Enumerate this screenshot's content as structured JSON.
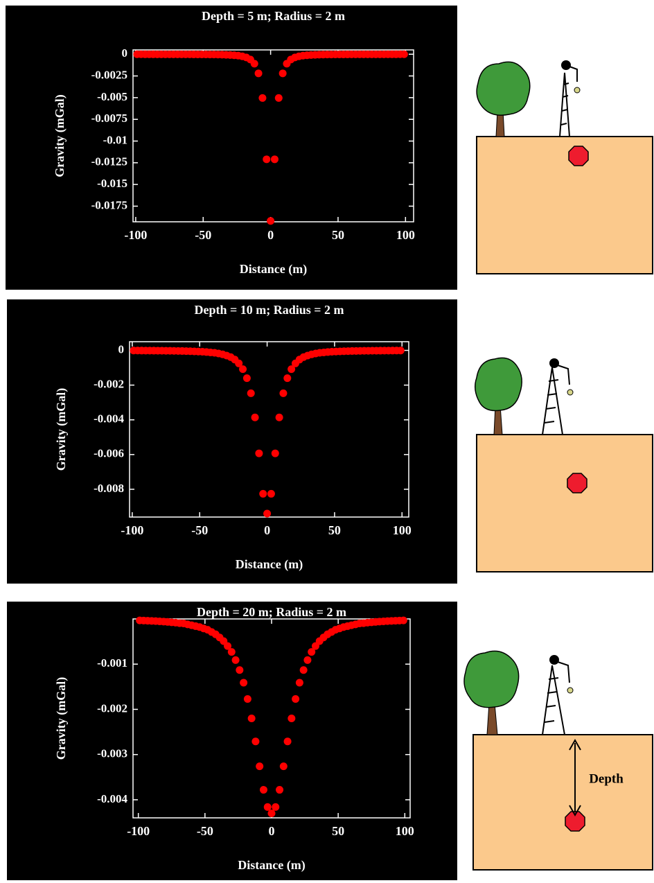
{
  "chart_data": [
    {
      "type": "scatter",
      "title": "Depth = 5 m; Radius = 2 m",
      "xlabel": "Distance (m)",
      "ylabel": "Gravity (mGal)",
      "x": [
        -99,
        -96,
        -93,
        -90,
        -87,
        -84,
        -81,
        -78,
        -75,
        -72,
        -69,
        -66,
        -63,
        -60,
        -57,
        -54,
        -51,
        -48,
        -45,
        -42,
        -39,
        -36,
        -33,
        -30,
        -27,
        -24,
        -21,
        -18,
        -15,
        -12,
        -9,
        -6,
        -3,
        0,
        3,
        6,
        9,
        12,
        15,
        18,
        21,
        24,
        27,
        30,
        33,
        36,
        39,
        42,
        45,
        48,
        51,
        54,
        57,
        60,
        63,
        66,
        69,
        72,
        75,
        78,
        81,
        84,
        87,
        90,
        93,
        96,
        99
      ],
      "series": [
        {
          "color": "#ff0000",
          "values": [
            -2.5e-06,
            -2.7e-06,
            -3e-06,
            -3.3e-06,
            -3.6e-06,
            -4e-06,
            -4.5e-06,
            -5e-06,
            -5.7e-06,
            -6.4e-06,
            -7.2e-06,
            -8.3e-06,
            -9.5e-06,
            -1.1e-05,
            -1.3e-05,
            -1.5e-05,
            -1.8e-05,
            -2.1e-05,
            -2.6e-05,
            -3.2e-05,
            -4e-05,
            -5e-05,
            -6.5e-05,
            -8.5e-05,
            -0.00012,
            -0.00016,
            -0.00024,
            -0.00037,
            -0.00061,
            -0.00109,
            -0.0022,
            -0.00504,
            -0.0121,
            -0.0192,
            -0.0121,
            -0.00504,
            -0.0022,
            -0.00109,
            -0.00061,
            -0.00037,
            -0.00024,
            -0.00016,
            -0.00012,
            -8.5e-05,
            -6.5e-05,
            -5e-05,
            -4e-05,
            -3.2e-05,
            -2.6e-05,
            -2.1e-05,
            -1.8e-05,
            -1.5e-05,
            -1.3e-05,
            -1.1e-05,
            -9.5e-06,
            -8.3e-06,
            -7.2e-06,
            -6.4e-06,
            -5.7e-06,
            -5e-06,
            -4.5e-06,
            -4e-06,
            -3.6e-06,
            -3.3e-06,
            -3e-06,
            -2.7e-06,
            -2.5e-06
          ]
        }
      ],
      "xlim": [
        -102,
        106
      ],
      "ylim": [
        -0.0193,
        0.0005
      ],
      "xticks": [
        -100,
        -50,
        0,
        50,
        100
      ],
      "yticks": [
        0,
        -0.0025,
        -0.005,
        -0.0075,
        -0.01,
        -0.0125,
        -0.015,
        -0.0175
      ]
    },
    {
      "type": "scatter",
      "title": "Depth = 10 m; Radius = 2 m",
      "xlabel": "Distance (m)",
      "ylabel": "Gravity (mGal)",
      "x": [
        -99,
        -96,
        -93,
        -90,
        -87,
        -84,
        -81,
        -78,
        -75,
        -72,
        -69,
        -66,
        -63,
        -60,
        -57,
        -54,
        -51,
        -48,
        -45,
        -42,
        -39,
        -36,
        -33,
        -30,
        -27,
        -24,
        -21,
        -18,
        -15,
        -12,
        -9,
        -6,
        -3,
        0,
        3,
        6,
        9,
        12,
        15,
        18,
        21,
        24,
        27,
        30,
        33,
        36,
        39,
        42,
        45,
        48,
        51,
        54,
        57,
        60,
        63,
        66,
        69,
        72,
        75,
        78,
        81,
        84,
        87,
        90,
        93,
        96,
        99
      ],
      "series": [
        {
          "color": "#ff0000",
          "values": [
            -9.5e-06,
            -1e-05,
            -1.1e-05,
            -1.3e-05,
            -1.4e-05,
            -1.6e-05,
            -1.7e-05,
            -1.9e-05,
            -2.2e-05,
            -2.4e-05,
            -2.8e-05,
            -3.2e-05,
            -3.6e-05,
            -4.2e-05,
            -4.9e-05,
            -5.7e-05,
            -6.7e-05,
            -8e-05,
            -9.6e-05,
            -0.00012,
            -0.00014,
            -0.00018,
            -0.00023,
            -0.0003,
            -0.00039,
            -0.00053,
            -0.00075,
            -0.00108,
            -0.0016,
            -0.00247,
            -0.00386,
            -0.00593,
            -0.00826,
            -0.0094,
            -0.00826,
            -0.00593,
            -0.00386,
            -0.00247,
            -0.0016,
            -0.00108,
            -0.00075,
            -0.00053,
            -0.00039,
            -0.0003,
            -0.00023,
            -0.00018,
            -0.00014,
            -0.00012,
            -9.6e-05,
            -8e-05,
            -6.7e-05,
            -5.7e-05,
            -4.9e-05,
            -4.2e-05,
            -3.6e-05,
            -3.2e-05,
            -2.8e-05,
            -2.4e-05,
            -2.2e-05,
            -1.9e-05,
            -1.7e-05,
            -1.6e-05,
            -1.4e-05,
            -1.3e-05,
            -1.1e-05,
            -1e-05,
            -9.5e-06
          ]
        }
      ],
      "xlim": [
        -102,
        105
      ],
      "ylim": [
        -0.0096,
        0.0005
      ],
      "xticks": [
        -100,
        -50,
        0,
        50,
        100
      ],
      "yticks": [
        0,
        -0.002,
        -0.004,
        -0.006,
        -0.008
      ]
    },
    {
      "type": "scatter",
      "title": "Depth = 20 m; Radius = 2 m",
      "xlabel": "Distance (m)",
      "ylabel": "Gravity (mGal)",
      "x": [
        -99,
        -96,
        -93,
        -90,
        -87,
        -84,
        -81,
        -78,
        -75,
        -72,
        -69,
        -66,
        -63,
        -60,
        -57,
        -54,
        -51,
        -48,
        -45,
        -42,
        -39,
        -36,
        -33,
        -30,
        -27,
        -24,
        -21,
        -18,
        -15,
        -12,
        -9,
        -6,
        -3,
        0,
        3,
        6,
        9,
        12,
        15,
        18,
        21,
        24,
        27,
        30,
        33,
        36,
        39,
        42,
        45,
        48,
        51,
        54,
        57,
        60,
        63,
        66,
        69,
        72,
        75,
        78,
        81,
        84,
        87,
        90,
        93,
        96,
        99
      ],
      "series": [
        {
          "color": "#ff0000",
          "values": [
            -3.3e-05,
            -3.6e-05,
            -4e-05,
            -4.4e-05,
            -4.8e-05,
            -5.3e-05,
            -5.9e-05,
            -6.6e-05,
            -7.4e-05,
            -8.2e-05,
            -9.3e-05,
            -0.0001,
            -0.00012,
            -0.00014,
            -0.00016,
            -0.00018,
            -0.00021,
            -0.00024,
            -0.00029,
            -0.00034,
            -0.00041,
            -0.00049,
            -0.0006,
            -0.00073,
            -0.00091,
            -0.00113,
            -0.00141,
            -0.00177,
            -0.0022,
            -0.00271,
            -0.00326,
            -0.00378,
            -0.00416,
            -0.0043,
            -0.00416,
            -0.00378,
            -0.00326,
            -0.00271,
            -0.0022,
            -0.00177,
            -0.00141,
            -0.00113,
            -0.00091,
            -0.00073,
            -0.0006,
            -0.00049,
            -0.00041,
            -0.00034,
            -0.00029,
            -0.00024,
            -0.00021,
            -0.00018,
            -0.00016,
            -0.00014,
            -0.00012,
            -0.0001,
            -9.3e-05,
            -8.2e-05,
            -7.4e-05,
            -6.6e-05,
            -5.9e-05,
            -5.3e-05,
            -4.8e-05,
            -4.4e-05,
            -4e-05,
            -3.6e-05,
            -3.3e-05
          ]
        }
      ],
      "xlim": [
        -104,
        104
      ],
      "ylim": [
        -0.0044,
        0
      ],
      "xticks": [
        -100,
        -50,
        0,
        50,
        100
      ],
      "yticks": [
        -0.001,
        -0.002,
        -0.003,
        -0.004
      ]
    }
  ],
  "diagram": {
    "depth_label": "Depth"
  }
}
